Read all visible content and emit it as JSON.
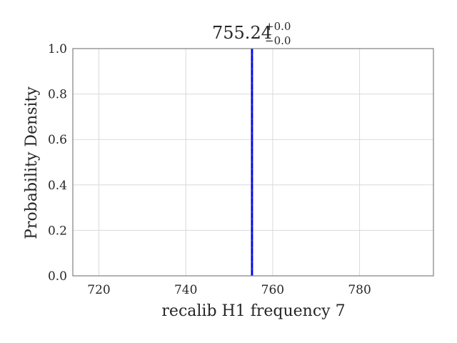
{
  "chart_data": {
    "type": "line",
    "title": {
      "value": "755.24",
      "upper_err": "+0.0",
      "lower_err": "−0.0"
    },
    "xlabel": "recalib H1 frequency 7",
    "ylabel": "Probability Density",
    "xlim": [
      714,
      797
    ],
    "ylim": [
      0,
      1
    ],
    "xticks": [
      720,
      740,
      760,
      780
    ],
    "yticks": [
      0.0,
      0.2,
      0.4,
      0.6,
      0.8,
      1.0
    ],
    "ytick_labels": [
      "0.0",
      "0.2",
      "0.4",
      "0.6",
      "0.8",
      "1.0"
    ],
    "grid": true,
    "series": [
      {
        "kind": "vline",
        "x": 755.24,
        "style": "solid",
        "color": "#1f1fbf"
      },
      {
        "kind": "vline",
        "x": 755.24,
        "style": "dashed",
        "color": "#0000ff"
      }
    ],
    "colors": {
      "frame": "#808080",
      "grid": "#d9d9d9",
      "text": "#262626"
    }
  }
}
